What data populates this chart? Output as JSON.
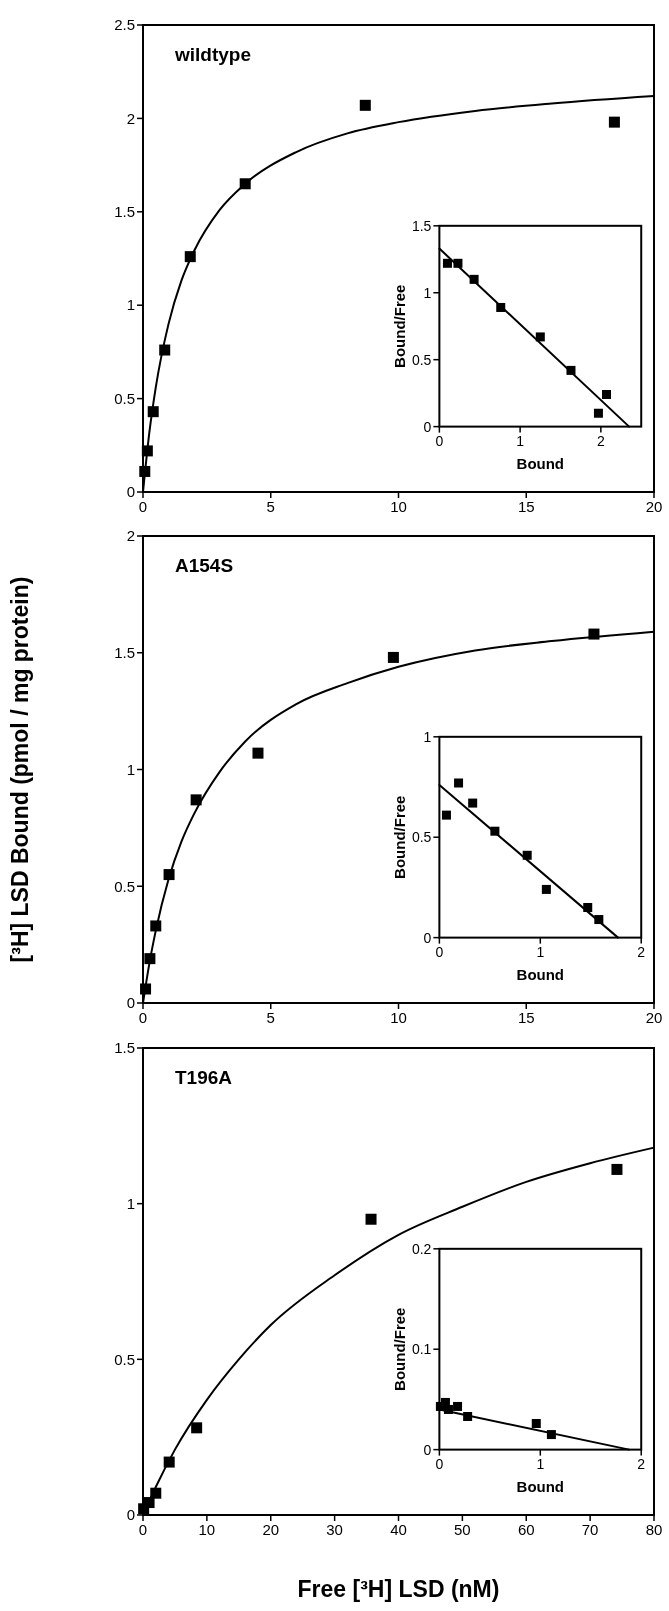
{
  "chart_data": [
    {
      "type": "scatter",
      "title": "wildtype",
      "xlim": [
        0,
        20
      ],
      "xticks": [
        0,
        5,
        10,
        15,
        20
      ],
      "ylim": [
        0,
        2.5
      ],
      "yticks": [
        0,
        0.5,
        1,
        1.5,
        2,
        2.5
      ],
      "series": [
        {
          "type": "scatter",
          "marker": "square",
          "color": "#000000",
          "x": [
            0.07,
            0.17,
            0.4,
            0.85,
            1.85,
            4.0,
            8.7,
            18.45
          ],
          "values": [
            0.11,
            0.22,
            0.43,
            0.76,
            1.26,
            1.65,
            2.07,
            1.98
          ]
        },
        {
          "type": "line",
          "color": "#000000",
          "x": [
            0,
            0.25,
            0.5,
            1,
            1.5,
            2,
            3,
            4,
            6,
            8,
            10,
            13,
            16,
            20
          ],
          "values": [
            0,
            0.32,
            0.56,
            0.9,
            1.13,
            1.29,
            1.51,
            1.65,
            1.82,
            1.92,
            1.98,
            2.04,
            2.08,
            2.12
          ]
        }
      ]
    },
    {
      "type": "scatter",
      "xlabel": "Bound",
      "ylabel": "Bound/Free",
      "xlim": [
        0,
        2.5
      ],
      "xticks": [
        0,
        1,
        2
      ],
      "ylim": [
        0,
        1.5
      ],
      "yticks": [
        0,
        0.5,
        1,
        1.5
      ],
      "series": [
        {
          "type": "scatter",
          "marker": "square",
          "color": "#000000",
          "x": [
            0.1,
            0.23,
            0.43,
            0.76,
            1.25,
            1.63,
            1.97,
            2.07
          ],
          "values": [
            1.22,
            1.22,
            1.1,
            0.89,
            0.67,
            0.42,
            0.1,
            0.24
          ]
        },
        {
          "type": "line",
          "color": "#000000",
          "x": [
            0,
            2.35
          ],
          "values": [
            1.33,
            0
          ]
        }
      ]
    },
    {
      "type": "scatter",
      "title": "A154S",
      "ylabel": "[³H] LSD Bound  (pmol / mg protein)",
      "xlim": [
        0,
        20
      ],
      "xticks": [
        0,
        5,
        10,
        15,
        20
      ],
      "ylim": [
        0,
        2
      ],
      "yticks": [
        0,
        0.5,
        1,
        1.5,
        2
      ],
      "series": [
        {
          "type": "scatter",
          "marker": "square",
          "color": "#000000",
          "x": [
            0.1,
            0.27,
            0.5,
            1.02,
            2.08,
            4.5,
            9.8,
            17.65
          ],
          "values": [
            0.06,
            0.19,
            0.33,
            0.55,
            0.87,
            1.07,
            1.48,
            1.58
          ]
        },
        {
          "type": "line",
          "color": "#000000",
          "x": [
            0,
            0.25,
            0.5,
            1,
            1.5,
            2,
            3,
            4,
            6,
            8,
            10,
            13,
            16,
            20
          ],
          "values": [
            0,
            0.17,
            0.31,
            0.53,
            0.69,
            0.81,
            0.99,
            1.12,
            1.28,
            1.37,
            1.44,
            1.51,
            1.55,
            1.59
          ]
        }
      ]
    },
    {
      "type": "scatter",
      "xlabel": "Bound",
      "ylabel": "Bound/Free",
      "xlim": [
        0,
        2
      ],
      "xticks": [
        0,
        1,
        2
      ],
      "ylim": [
        0,
        1
      ],
      "yticks": [
        0,
        0.5,
        1
      ],
      "series": [
        {
          "type": "scatter",
          "marker": "square",
          "color": "#000000",
          "x": [
            0.07,
            0.19,
            0.33,
            0.55,
            0.87,
            1.06,
            1.47,
            1.58
          ],
          "values": [
            0.61,
            0.77,
            0.67,
            0.53,
            0.41,
            0.24,
            0.15,
            0.09
          ]
        },
        {
          "type": "line",
          "color": "#000000",
          "x": [
            0,
            1.77
          ],
          "values": [
            0.76,
            0
          ]
        }
      ]
    },
    {
      "type": "scatter",
      "title": "T196A",
      "xlabel": "Free [³H] LSD (nM)",
      "xlim": [
        0,
        80
      ],
      "xticks": [
        0,
        10,
        20,
        30,
        40,
        50,
        60,
        70,
        80
      ],
      "ylim": [
        0,
        1.5
      ],
      "yticks": [
        0,
        0.5,
        1,
        1.5
      ],
      "series": [
        {
          "type": "scatter",
          "marker": "square",
          "color": "#000000",
          "x": [
            0.1,
            0.95,
            2.0,
            4.1,
            8.4,
            35.7,
            74.2
          ],
          "values": [
            0.02,
            0.04,
            0.07,
            0.17,
            0.28,
            0.95,
            1.11
          ]
        },
        {
          "type": "line",
          "color": "#000000",
          "x": [
            0,
            2,
            5,
            10,
            15,
            20,
            30,
            40,
            50,
            60,
            70,
            80
          ],
          "values": [
            0,
            0.09,
            0.21,
            0.37,
            0.5,
            0.61,
            0.77,
            0.9,
            0.99,
            1.07,
            1.13,
            1.18
          ]
        }
      ]
    },
    {
      "type": "scatter",
      "xlabel": "Bound",
      "ylabel": "Bound/Free",
      "xlim": [
        0,
        2
      ],
      "xticks": [
        0,
        1,
        2
      ],
      "ylim": [
        0,
        0.2
      ],
      "yticks": [
        0,
        0.1,
        0.2
      ],
      "series": [
        {
          "type": "scatter",
          "marker": "square",
          "color": "#000000",
          "x": [
            0.01,
            0.06,
            0.09,
            0.18,
            0.28,
            0.96,
            1.11
          ],
          "values": [
            0.043,
            0.047,
            0.04,
            0.043,
            0.033,
            0.026,
            0.015
          ]
        },
        {
          "type": "line",
          "color": "#000000",
          "x": [
            0,
            1.88
          ],
          "values": [
            0.04,
            0
          ]
        }
      ]
    }
  ]
}
